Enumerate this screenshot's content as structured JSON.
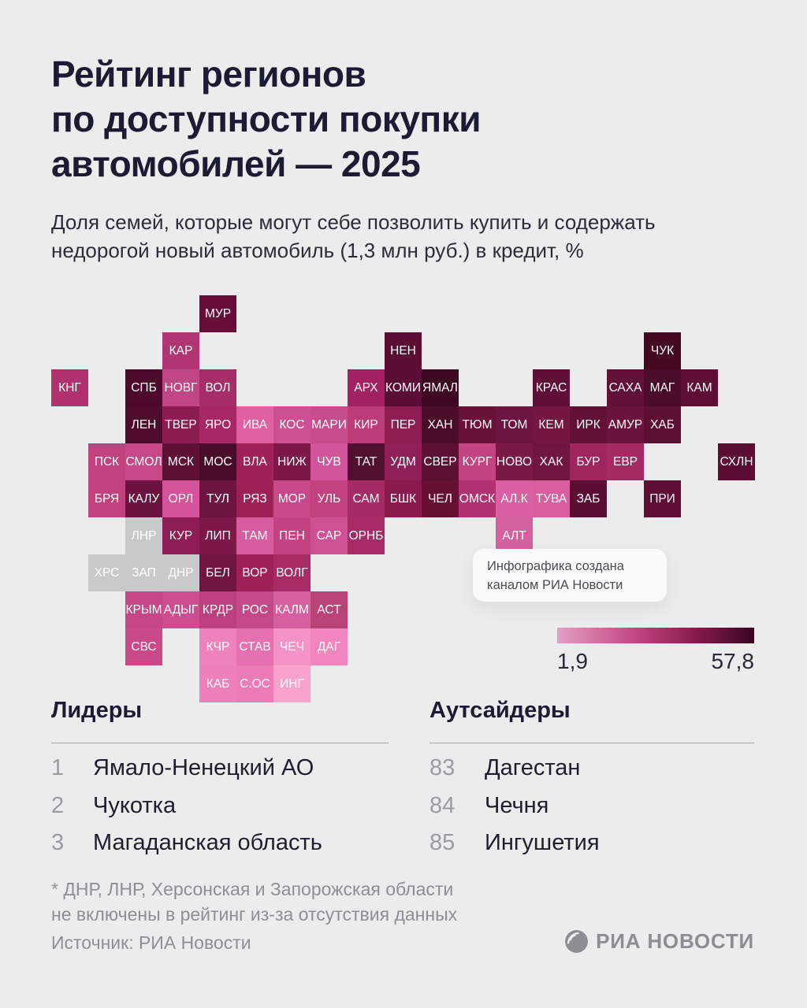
{
  "header": {
    "title_lines": [
      "Рейтинг регионов",
      "по доступности покупки",
      "автомобилей — 2025"
    ],
    "subtitle_lines": [
      "Доля семей, которые могут себе позволить купить и содержать",
      "недорогой новый автомобиль (1,3 млн руб.) в кредит, %"
    ]
  },
  "attribution": {
    "line1": "Инфографика создана",
    "line2": "каналом РИА Новости"
  },
  "legend": {
    "min_label": "1,9",
    "max_label": "57,8",
    "gradient": [
      "#e2a0c6",
      "#c24581",
      "#801a4b",
      "#3a0620"
    ]
  },
  "chart_data": {
    "type": "heatmap",
    "title": "Рейтинг регионов по доступности покупки автомобилей — 2025",
    "unit": "%",
    "scale_min": 1.9,
    "scale_max": 57.8,
    "scale_note": "цвет плитки кодирует долю семей: светло-розовый = 1,9%, тёмно-бордовый = 57,8%",
    "no_data_regions": [
      "ЛНР",
      "ХРС",
      "ЗАП",
      "ДНР"
    ],
    "tiles": [
      {
        "label": "МУР",
        "row": 0,
        "col": 4,
        "color": "#670d38"
      },
      {
        "label": "КАР",
        "row": 1,
        "col": 3,
        "color": "#b13573"
      },
      {
        "label": "НЕН",
        "row": 1,
        "col": 9,
        "color": "#5c0d35"
      },
      {
        "label": "ЧУК",
        "row": 1,
        "col": 16,
        "color": "#440823"
      },
      {
        "label": "КНГ",
        "row": 2,
        "col": 0,
        "color": "#b0316e"
      },
      {
        "label": "СПБ",
        "row": 2,
        "col": 2,
        "color": "#4d092b"
      },
      {
        "label": "НОВГ",
        "row": 2,
        "col": 3,
        "color": "#bf4784"
      },
      {
        "label": "ВОЛ",
        "row": 2,
        "col": 4,
        "color": "#a62d68"
      },
      {
        "label": "АРХ",
        "row": 2,
        "col": 8,
        "color": "#a32160"
      },
      {
        "label": "КОМИ",
        "row": 2,
        "col": 9,
        "color": "#5c0d35"
      },
      {
        "label": "ЯМАЛ",
        "row": 2,
        "col": 10,
        "color": "#3d0721"
      },
      {
        "label": "КРАС",
        "row": 2,
        "col": 13,
        "color": "#5f0f36"
      },
      {
        "label": "САХА",
        "row": 2,
        "col": 15,
        "color": "#611138"
      },
      {
        "label": "МАГ",
        "row": 2,
        "col": 16,
        "color": "#4a0a29"
      },
      {
        "label": "КАМ",
        "row": 2,
        "col": 17,
        "color": "#5e0e35"
      },
      {
        "label": "ЛЕН",
        "row": 3,
        "col": 2,
        "color": "#4f0b2c"
      },
      {
        "label": "ТВЕР",
        "row": 3,
        "col": 3,
        "color": "#8c1c52"
      },
      {
        "label": "ЯРО",
        "row": 3,
        "col": 4,
        "color": "#a82765"
      },
      {
        "label": "ИВА",
        "row": 3,
        "col": 5,
        "color": "#e0619f"
      },
      {
        "label": "КОС",
        "row": 3,
        "col": 6,
        "color": "#cc5193"
      },
      {
        "label": "МАРИ",
        "row": 3,
        "col": 7,
        "color": "#c64c8c"
      },
      {
        "label": "КИР",
        "row": 3,
        "col": 8,
        "color": "#bc3c7a"
      },
      {
        "label": "ПЕР",
        "row": 3,
        "col": 9,
        "color": "#8e1d51"
      },
      {
        "label": "ХАН",
        "row": 3,
        "col": 10,
        "color": "#4b0c29"
      },
      {
        "label": "ТЮМ",
        "row": 3,
        "col": 11,
        "color": "#691038"
      },
      {
        "label": "ТОМ",
        "row": 3,
        "col": 12,
        "color": "#6d1440"
      },
      {
        "label": "КЕМ",
        "row": 3,
        "col": 13,
        "color": "#731741"
      },
      {
        "label": "ИРК",
        "row": 3,
        "col": 14,
        "color": "#601135"
      },
      {
        "label": "АМУР",
        "row": 3,
        "col": 15,
        "color": "#6b133c"
      },
      {
        "label": "ХАБ",
        "row": 3,
        "col": 16,
        "color": "#5c0f33"
      },
      {
        "label": "ПСК",
        "row": 4,
        "col": 1,
        "color": "#c2417f"
      },
      {
        "label": "СМОЛ",
        "row": 4,
        "col": 2,
        "color": "#c74889"
      },
      {
        "label": "МСК",
        "row": 4,
        "col": 3,
        "color": "#5c1034"
      },
      {
        "label": "МОС",
        "row": 4,
        "col": 4,
        "color": "#490c28"
      },
      {
        "label": "ВЛА",
        "row": 4,
        "col": 5,
        "color": "#9e2157"
      },
      {
        "label": "НИЖ",
        "row": 4,
        "col": 6,
        "color": "#7b1848"
      },
      {
        "label": "ЧУВ",
        "row": 4,
        "col": 7,
        "color": "#d2549a"
      },
      {
        "label": "ТАТ",
        "row": 4,
        "col": 8,
        "color": "#521030"
      },
      {
        "label": "УДМ",
        "row": 4,
        "col": 9,
        "color": "#8e2057"
      },
      {
        "label": "СВЕР",
        "row": 4,
        "col": 10,
        "color": "#5c1034"
      },
      {
        "label": "КУРГ",
        "row": 4,
        "col": 11,
        "color": "#c34480"
      },
      {
        "label": "НОВО",
        "row": 4,
        "col": 12,
        "color": "#7a1846"
      },
      {
        "label": "ХАК",
        "row": 4,
        "col": 13,
        "color": "#701440"
      },
      {
        "label": "БУР",
        "row": 4,
        "col": 14,
        "color": "#9e255e"
      },
      {
        "label": "ЕВР",
        "row": 4,
        "col": 15,
        "color": "#a52a63"
      },
      {
        "label": "СХЛН",
        "row": 4,
        "col": 18,
        "color": "#5c0d33"
      },
      {
        "label": "БРЯ",
        "row": 5,
        "col": 1,
        "color": "#c2417f"
      },
      {
        "label": "КАЛУ",
        "row": 5,
        "col": 2,
        "color": "#6b1240"
      },
      {
        "label": "ОРЛ",
        "row": 5,
        "col": 3,
        "color": "#d4539a"
      },
      {
        "label": "ТУЛ",
        "row": 5,
        "col": 4,
        "color": "#6d1440"
      },
      {
        "label": "РЯЗ",
        "row": 5,
        "col": 5,
        "color": "#9e2155"
      },
      {
        "label": "МОР",
        "row": 5,
        "col": 6,
        "color": "#c8498a"
      },
      {
        "label": "УЛЬ",
        "row": 5,
        "col": 7,
        "color": "#c2417f"
      },
      {
        "label": "САМ",
        "row": 5,
        "col": 8,
        "color": "#a62a66"
      },
      {
        "label": "БШК",
        "row": 5,
        "col": 9,
        "color": "#8a1a4e"
      },
      {
        "label": "ЧЕЛ",
        "row": 5,
        "col": 10,
        "color": "#661034"
      },
      {
        "label": "ОМСК",
        "row": 5,
        "col": 11,
        "color": "#b23271"
      },
      {
        "label": "АЛ.К",
        "row": 5,
        "col": 12,
        "color": "#d960a2"
      },
      {
        "label": "ТУВА",
        "row": 5,
        "col": 13,
        "color": "#d95d9f"
      },
      {
        "label": "ЗАБ",
        "row": 5,
        "col": 14,
        "color": "#5a0e33"
      },
      {
        "label": "ПРИ",
        "row": 5,
        "col": 16,
        "color": "#5e0d35"
      },
      {
        "label": "ЛНР",
        "row": 6,
        "col": 2,
        "color": "#c9c9c9"
      },
      {
        "label": "КУР",
        "row": 6,
        "col": 3,
        "color": "#8e1d55"
      },
      {
        "label": "ЛИП",
        "row": 6,
        "col": 4,
        "color": "#7b1848"
      },
      {
        "label": "ТАМ",
        "row": 6,
        "col": 5,
        "color": "#d75c9f"
      },
      {
        "label": "ПЕН",
        "row": 6,
        "col": 6,
        "color": "#c44383"
      },
      {
        "label": "САР",
        "row": 6,
        "col": 7,
        "color": "#ce5194"
      },
      {
        "label": "ОРНБ",
        "row": 6,
        "col": 8,
        "color": "#a82a67"
      },
      {
        "label": "АЛТ",
        "row": 6,
        "col": 12,
        "color": "#d560a0"
      },
      {
        "label": "ХРС",
        "row": 7,
        "col": 1,
        "color": "#c9c9c9"
      },
      {
        "label": "ЗАП",
        "row": 7,
        "col": 2,
        "color": "#c9c9c9"
      },
      {
        "label": "ДНР",
        "row": 7,
        "col": 3,
        "color": "#c9c9c9"
      },
      {
        "label": "БЕЛ",
        "row": 7,
        "col": 4,
        "color": "#701540"
      },
      {
        "label": "ВОР",
        "row": 7,
        "col": 5,
        "color": "#9e2157"
      },
      {
        "label": "ВОЛГ",
        "row": 7,
        "col": 6,
        "color": "#a82b65"
      },
      {
        "label": "КРЫМ",
        "row": 8,
        "col": 2,
        "color": "#c64686"
      },
      {
        "label": "АДЫГ",
        "row": 8,
        "col": 3,
        "color": "#cc4e8f"
      },
      {
        "label": "КРДР",
        "row": 8,
        "col": 4,
        "color": "#bd3f7e"
      },
      {
        "label": "РОС",
        "row": 8,
        "col": 5,
        "color": "#c54889"
      },
      {
        "label": "КАЛМ",
        "row": 8,
        "col": 6,
        "color": "#d65f9f"
      },
      {
        "label": "АСТ",
        "row": 8,
        "col": 7,
        "color": "#b74377"
      },
      {
        "label": "СВС",
        "row": 9,
        "col": 2,
        "color": "#c84a89"
      },
      {
        "label": "КЧР",
        "row": 9,
        "col": 4,
        "color": "#ee82ba"
      },
      {
        "label": "СТАВ",
        "row": 9,
        "col": 5,
        "color": "#e671b0"
      },
      {
        "label": "ЧЕЧ",
        "row": 9,
        "col": 6,
        "color": "#f493c5"
      },
      {
        "label": "ДАГ",
        "row": 9,
        "col": 7,
        "color": "#f185bd"
      },
      {
        "label": "КАБ",
        "row": 10,
        "col": 4,
        "color": "#ee80b9"
      },
      {
        "label": "С.ОС",
        "row": 10,
        "col": 5,
        "color": "#ec7cb6"
      },
      {
        "label": "ИНГ",
        "row": 10,
        "col": 6,
        "color": "#f8a2cc"
      }
    ]
  },
  "leaders": {
    "heading": "Лидеры",
    "items": [
      {
        "rank": "1",
        "name": "Ямало-Ненецкий АО"
      },
      {
        "rank": "2",
        "name": "Чукотка"
      },
      {
        "rank": "3",
        "name": "Магаданская область"
      }
    ]
  },
  "outsiders": {
    "heading": "Аутсайдеры",
    "items": [
      {
        "rank": "83",
        "name": "Дагестан"
      },
      {
        "rank": "84",
        "name": "Чечня"
      },
      {
        "rank": "85",
        "name": "Ингушетия"
      }
    ]
  },
  "footnote_lines": [
    "* ДНР, ЛНР, Херсонская и Запорожская области",
    "не включены в рейтинг из-за отсутствия данных"
  ],
  "source": "Источник: РИА Новости",
  "logo_text": "РИА НОВОСТИ"
}
